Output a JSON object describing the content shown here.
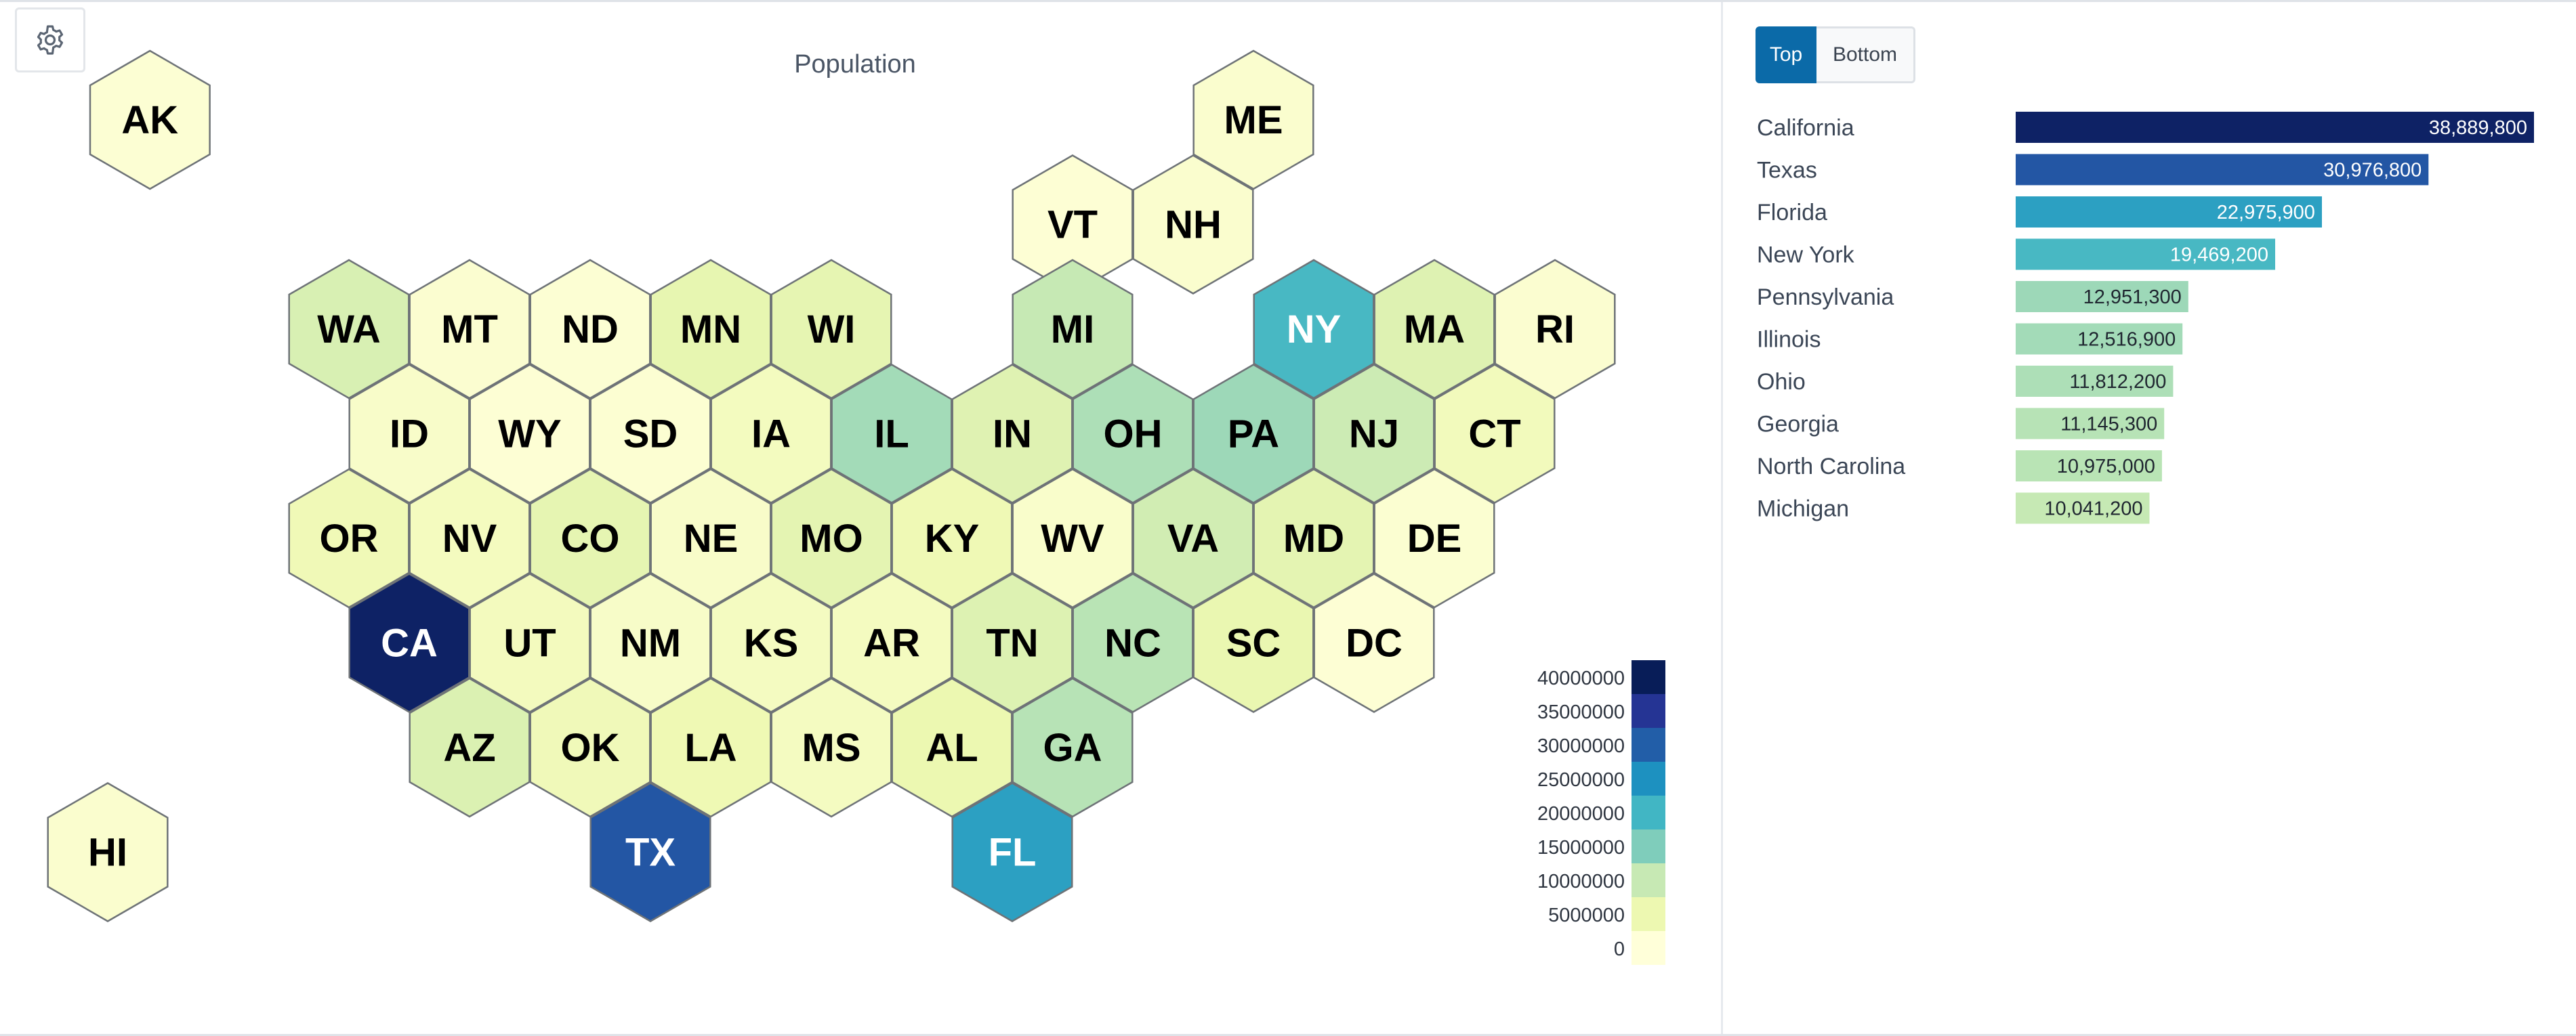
{
  "title": "Population",
  "toolbar": {
    "settings_icon": "gear-icon"
  },
  "toggle": {
    "top_label": "Top",
    "bottom_label": "Bottom",
    "selected": "Top"
  },
  "legend": {
    "labels": [
      "40000000",
      "35000000",
      "30000000",
      "25000000",
      "20000000",
      "15000000",
      "10000000",
      "5000000",
      "0"
    ]
  },
  "chart_data": {
    "type": "hex-tile-map",
    "metric": "Population",
    "color_scale": {
      "min": 0,
      "max": 40000000,
      "stops": [
        "#ffffd9",
        "#edf8b1",
        "#c7e9b4",
        "#7fcdbb",
        "#41b6c4",
        "#1d91c0",
        "#225ea8",
        "#253494",
        "#081d58"
      ]
    },
    "states": [
      {
        "abbr": "AK",
        "value": 733000
      },
      {
        "abbr": "ME",
        "value": 1395700
      },
      {
        "abbr": "VT",
        "value": 647500
      },
      {
        "abbr": "NH",
        "value": 1402100
      },
      {
        "abbr": "WA",
        "value": 7812900
      },
      {
        "abbr": "MT",
        "value": 1132800
      },
      {
        "abbr": "ND",
        "value": 783900
      },
      {
        "abbr": "MN",
        "value": 5737900
      },
      {
        "abbr": "WI",
        "value": 5910900
      },
      {
        "abbr": "MI",
        "value": 10041200
      },
      {
        "abbr": "NY",
        "value": 19469200
      },
      {
        "abbr": "MA",
        "value": 7001400
      },
      {
        "abbr": "RI",
        "value": 1095900
      },
      {
        "abbr": "ID",
        "value": 1964700
      },
      {
        "abbr": "WY",
        "value": 584000
      },
      {
        "abbr": "SD",
        "value": 919300
      },
      {
        "abbr": "IA",
        "value": 3207000
      },
      {
        "abbr": "IL",
        "value": 12516900
      },
      {
        "abbr": "IN",
        "value": 6862200
      },
      {
        "abbr": "OH",
        "value": 11812200
      },
      {
        "abbr": "PA",
        "value": 12951300
      },
      {
        "abbr": "NJ",
        "value": 9290800
      },
      {
        "abbr": "CT",
        "value": 3617200
      },
      {
        "abbr": "OR",
        "value": 4233400
      },
      {
        "abbr": "NV",
        "value": 3194200
      },
      {
        "abbr": "CO",
        "value": 5877600
      },
      {
        "abbr": "NE",
        "value": 1978400
      },
      {
        "abbr": "MO",
        "value": 6196100
      },
      {
        "abbr": "KY",
        "value": 4526200
      },
      {
        "abbr": "WV",
        "value": 1770100
      },
      {
        "abbr": "VA",
        "value": 8715700
      },
      {
        "abbr": "MD",
        "value": 6180200
      },
      {
        "abbr": "DE",
        "value": 1031900
      },
      {
        "abbr": "CA",
        "value": 38889800
      },
      {
        "abbr": "UT",
        "value": 3417700
      },
      {
        "abbr": "NM",
        "value": 2114400
      },
      {
        "abbr": "KS",
        "value": 2940500
      },
      {
        "abbr": "AR",
        "value": 3067700
      },
      {
        "abbr": "TN",
        "value": 7126500
      },
      {
        "abbr": "NC",
        "value": 10975000
      },
      {
        "abbr": "SC",
        "value": 5373600
      },
      {
        "abbr": "DC",
        "value": 678900
      },
      {
        "abbr": "AZ",
        "value": 7431300
      },
      {
        "abbr": "OK",
        "value": 4053800
      },
      {
        "abbr": "LA",
        "value": 4573700
      },
      {
        "abbr": "MS",
        "value": 2939700
      },
      {
        "abbr": "AL",
        "value": 5108500
      },
      {
        "abbr": "GA",
        "value": 11145300
      },
      {
        "abbr": "HI",
        "value": 1435100
      },
      {
        "abbr": "TX",
        "value": 30976800
      },
      {
        "abbr": "FL",
        "value": 22975900
      }
    ],
    "ranking": {
      "type": "bar",
      "orientation": "horizontal",
      "categories": [
        "California",
        "Texas",
        "Florida",
        "New York",
        "Pennsylvania",
        "Illinois",
        "Ohio",
        "Georgia",
        "North Carolina",
        "Michigan"
      ],
      "values": [
        38889800,
        30976800,
        22975900,
        19469200,
        12951300,
        12516900,
        11812200,
        11145300,
        10975000,
        10041200
      ],
      "value_labels": [
        "38,889,800",
        "30,976,800",
        "22,975,900",
        "19,469,200",
        "12,951,300",
        "12,516,900",
        "11,812,200",
        "11,145,300",
        "10,975,000",
        "10,041,200"
      ],
      "xlim": [
        0,
        38889800
      ]
    }
  }
}
